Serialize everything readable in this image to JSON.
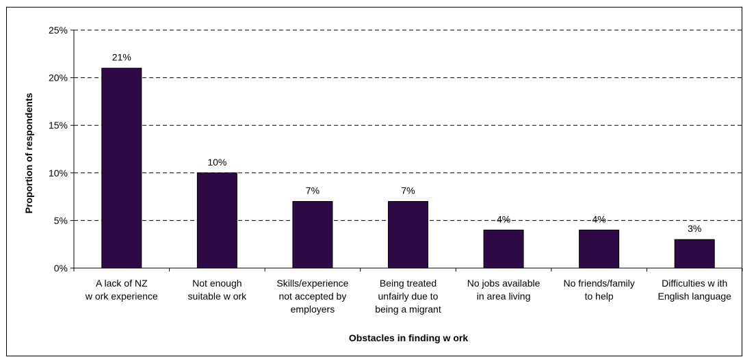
{
  "chart_data": {
    "type": "bar",
    "categories": [
      [
        "A lack of NZ",
        "w ork experience"
      ],
      [
        "Not enough",
        "suitable w ork"
      ],
      [
        "Skills/experience",
        "not accepted by",
        "employers"
      ],
      [
        "Being treated",
        "unfairly due to",
        "being a migrant"
      ],
      [
        "No jobs available",
        "in area living"
      ],
      [
        "No friends/family",
        "to help"
      ],
      [
        "Difficulties w ith",
        "English language"
      ]
    ],
    "values": [
      21,
      10,
      7,
      7,
      4,
      4,
      3
    ],
    "data_labels": [
      "21%",
      "10%",
      "7%",
      "7%",
      "4%",
      "4%",
      "3%"
    ],
    "y_ticks": [
      0,
      5,
      10,
      15,
      20,
      25
    ],
    "y_tick_labels": [
      "0%",
      "5%",
      "10%",
      "15%",
      "20%",
      "25%"
    ],
    "ylim": [
      0,
      25
    ],
    "xlabel": "Obstacles in finding w ork",
    "ylabel": "Proportion of respondents",
    "grid": true,
    "bar_color": "#2e0a46"
  }
}
